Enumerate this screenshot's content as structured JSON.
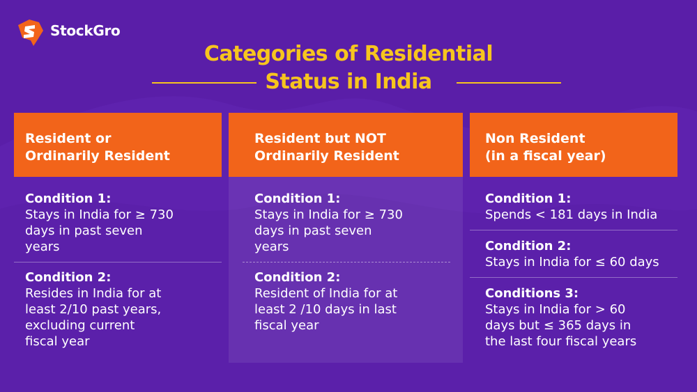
{
  "brand": {
    "name": "StockGro"
  },
  "title": {
    "line1": "Categories of Residential",
    "line2": "Status in India"
  },
  "colors": {
    "background": "#5a1ea8",
    "accent": "#f7c51e",
    "header": "#f2641a"
  },
  "columns": [
    {
      "heading": [
        "Resident or",
        "Ordinarily Resident"
      ],
      "conditions": [
        {
          "label": "Condition 1:",
          "lines": [
            "Stays in India for ≥ 730",
            "days in past seven",
            "years"
          ]
        },
        {
          "label": "Condition 2:",
          "lines": [
            "Resides in India for at",
            "least 2/10 past years,",
            "excluding current",
            "fiscal year"
          ]
        }
      ]
    },
    {
      "heading": [
        "Resident but NOT",
        "Ordinarily Resident"
      ],
      "conditions": [
        {
          "label": "Condition 1:",
          "lines": [
            "Stays in India for ≥ 730",
            "days in past seven",
            "years"
          ]
        },
        {
          "label": "Condition 2:",
          "lines": [
            "Resident of India for at",
            "least 2 /10 days in last",
            "fiscal year"
          ]
        }
      ]
    },
    {
      "heading": [
        "Non Resident",
        "(in a fiscal year)"
      ],
      "conditions": [
        {
          "label": "Condition 1:",
          "lines": [
            "Spends < 181 days in India"
          ]
        },
        {
          "label": "Condition 2:",
          "lines": [
            "Stays in India for ≤ 60 days"
          ]
        },
        {
          "label": "Conditions 3:",
          "lines": [
            "Stays in India for > 60",
            "days but ≤ 365 days in",
            "the last four fiscal years"
          ]
        }
      ]
    }
  ]
}
